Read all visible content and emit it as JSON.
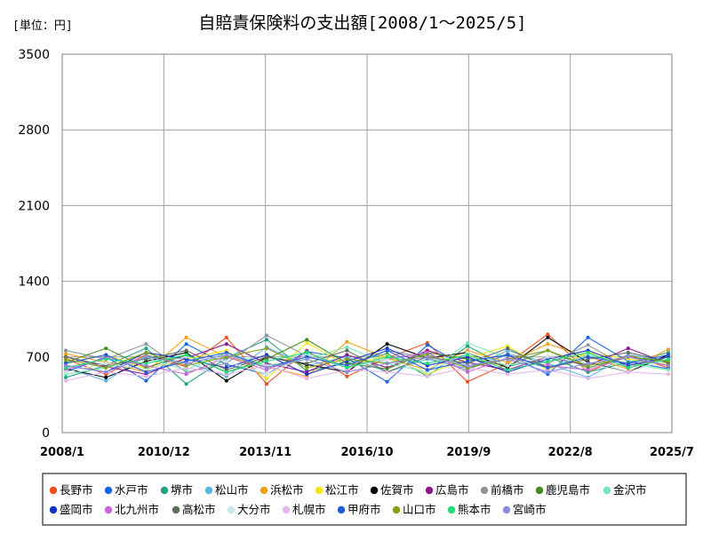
{
  "chart_data": {
    "type": "line",
    "title": "自賠責保険料の支出額[2008/1～2025/5]",
    "unit_label": "[単位：円]",
    "xlabel": "",
    "ylabel": "",
    "ylim": [
      0,
      3500
    ],
    "y_ticks": [
      0,
      700,
      1400,
      2100,
      2800,
      3500
    ],
    "y_tick_labels": [
      "0",
      "700",
      "1400",
      "2100",
      "2800",
      "3500"
    ],
    "x_range": [
      "2008-01",
      "2025-07"
    ],
    "x_ticks": [
      "2008/1",
      "2010/12",
      "2013/11",
      "2016/10",
      "2019/9",
      "2022/8",
      "2025/7"
    ],
    "grid": true,
    "legend_position": "bottom",
    "series": [
      {
        "name": "長野市",
        "color": "#f0501e",
        "values": [
          680,
          540,
          720,
          610,
          880,
          450,
          760,
          520,
          690,
          830,
          470,
          640,
          910,
          560,
          720,
          600
        ]
      },
      {
        "name": "水戸市",
        "color": "#1464e6",
        "values": [
          560,
          700,
          480,
          820,
          630,
          540,
          750,
          690,
          470,
          810,
          600,
          720,
          540,
          880,
          660,
          590
        ]
      },
      {
        "name": "堺市",
        "color": "#1ea082",
        "values": [
          510,
          620,
          780,
          450,
          690,
          860,
          570,
          640,
          730,
          520,
          800,
          610,
          700,
          560,
          650,
          740
        ]
      },
      {
        "name": "松山市",
        "color": "#5ab4e6",
        "values": [
          600,
          480,
          710,
          650,
          520,
          790,
          620,
          700,
          560,
          680,
          590,
          760,
          640,
          510,
          720,
          660
        ]
      },
      {
        "name": "浜松市",
        "color": "#f5a014",
        "values": [
          730,
          650,
          560,
          880,
          700,
          610,
          520,
          840,
          690,
          580,
          760,
          650,
          820,
          700,
          590,
          770
        ]
      },
      {
        "name": "松江市",
        "color": "#f0e614",
        "values": [
          640,
          720,
          590,
          680,
          760,
          500,
          830,
          620,
          710,
          540,
          690,
          800,
          580,
          740,
          680,
          630
        ]
      },
      {
        "name": "佐賀市",
        "color": "#000000",
        "values": [
          590,
          510,
          660,
          740,
          480,
          700,
          630,
          560,
          820,
          690,
          740,
          600,
          880,
          650,
          560,
          720
        ]
      },
      {
        "name": "広島市",
        "color": "#8c148c",
        "values": [
          700,
          610,
          540,
          690,
          820,
          640,
          560,
          720,
          600,
          760,
          650,
          580,
          700,
          620,
          780,
          640
        ]
      },
      {
        "name": "前橋市",
        "color": "#8c96a0",
        "values": [
          760,
          680,
          820,
          560,
          640,
          900,
          710,
          600,
          760,
          690,
          580,
          730,
          640,
          810,
          600,
          700
        ]
      },
      {
        "name": "鹿児島市",
        "color": "#468c1e",
        "values": [
          650,
          780,
          600,
          720,
          560,
          680,
          860,
          640,
          590,
          740,
          680,
          620,
          760,
          600,
          700,
          650
        ]
      },
      {
        "name": "金沢市",
        "color": "#78e6b4",
        "values": [
          540,
          600,
          690,
          580,
          740,
          620,
          680,
          790,
          640,
          560,
          830,
          690,
          600,
          720,
          640,
          580
        ]
      },
      {
        "name": "盛岡市",
        "color": "#1432c8",
        "values": [
          620,
          560,
          740,
          680,
          600,
          720,
          540,
          660,
          780,
          620,
          700,
          560,
          680,
          760,
          620,
          700
        ]
      },
      {
        "name": "北九州市",
        "color": "#c864dc",
        "values": [
          580,
          690,
          620,
          540,
          700,
          580,
          720,
          600,
          680,
          740,
          560,
          690,
          620,
          580,
          700,
          620
        ]
      },
      {
        "name": "高松市",
        "color": "#5a6e5a",
        "values": [
          700,
          620,
          680,
          760,
          580,
          700,
          640,
          760,
          560,
          700,
          640,
          780,
          600,
          680,
          740,
          660
        ]
      },
      {
        "name": "大分市",
        "color": "#c8e6e6",
        "values": [
          560,
          640,
          580,
          700,
          660,
          540,
          720,
          600,
          680,
          560,
          740,
          620,
          700,
          640,
          560,
          680
        ]
      },
      {
        "name": "札幌市",
        "color": "#e6b4f0",
        "values": [
          480,
          560,
          520,
          600,
          540,
          620,
          500,
          580,
          560,
          520,
          600,
          540,
          580,
          500,
          560,
          540
        ]
      },
      {
        "name": "甲府市",
        "color": "#1e5adc",
        "values": [
          640,
          720,
          560,
          660,
          740,
          600,
          700,
          620,
          760,
          580,
          660,
          720,
          600,
          700,
          640,
          720
        ]
      },
      {
        "name": "山口市",
        "color": "#82a014",
        "values": [
          680,
          600,
          740,
          620,
          700,
          780,
          600,
          680,
          640,
          720,
          600,
          680,
          760,
          620,
          700,
          660
        ]
      },
      {
        "name": "熊本市",
        "color": "#1edc78",
        "values": [
          600,
          680,
          640,
          720,
          560,
          660,
          740,
          600,
          700,
          640,
          720,
          580,
          660,
          740,
          600,
          680
        ]
      },
      {
        "name": "宮崎市",
        "color": "#8c8cdc",
        "values": [
          620,
          560,
          700,
          640,
          720,
          600,
          680,
          560,
          640,
          700,
          620,
          680,
          560,
          640,
          700,
          620
        ]
      }
    ]
  }
}
